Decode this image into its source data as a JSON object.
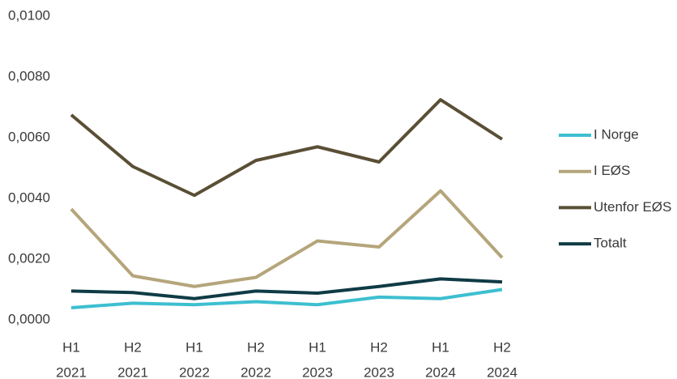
{
  "chart_data": {
    "type": "line",
    "categories": [
      [
        "H1",
        "2021"
      ],
      [
        "H2",
        "2021"
      ],
      [
        "H1",
        "2022"
      ],
      [
        "H2",
        "2022"
      ],
      [
        "H1",
        "2023"
      ],
      [
        "H2",
        "2023"
      ],
      [
        "H1",
        "2024"
      ],
      [
        "H2",
        "2024"
      ]
    ],
    "ylim": [
      0,
      0.01
    ],
    "yticks": [
      {
        "value": 0,
        "label": "0,0000"
      },
      {
        "value": 0.002,
        "label": "0,0020"
      },
      {
        "value": 0.004,
        "label": "0,0040"
      },
      {
        "value": 0.006,
        "label": "0,0060"
      },
      {
        "value": 0.008,
        "label": "0,0080"
      },
      {
        "value": 0.01,
        "label": "0,0100"
      }
    ],
    "legend": "right",
    "series": [
      {
        "name": "I Norge",
        "color": "#3dbfd0",
        "values": [
          0.0004,
          0.00055,
          0.0005,
          0.0006,
          0.0005,
          0.00075,
          0.0007,
          0.001
        ]
      },
      {
        "name": "I EØS",
        "color": "#b5a57b",
        "values": [
          0.00365,
          0.00145,
          0.0011,
          0.0014,
          0.0026,
          0.0024,
          0.00425,
          0.00205
        ]
      },
      {
        "name": "Utenfor EØS",
        "color": "#5a4f35",
        "values": [
          0.00675,
          0.00505,
          0.0041,
          0.00525,
          0.0057,
          0.0052,
          0.00725,
          0.00595
        ]
      },
      {
        "name": "Totalt",
        "color": "#0f3b45",
        "values": [
          0.00095,
          0.0009,
          0.0007,
          0.00095,
          0.00088,
          0.0011,
          0.00135,
          0.00125
        ]
      }
    ]
  }
}
